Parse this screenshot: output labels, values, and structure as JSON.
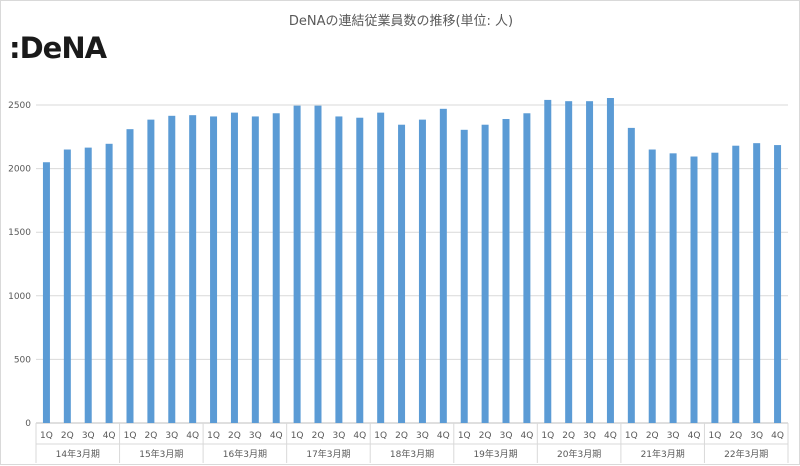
{
  "title": "DeNAの連結従業員数の推移(単位: 人)",
  "logo": ":DeNA",
  "chart_data": {
    "type": "bar",
    "title": "DeNAの連結従業員数の推移(単位: 人)",
    "xlabel": "",
    "ylabel": "",
    "ylim": [
      0,
      2500
    ],
    "yticks": [
      0,
      500,
      1000,
      1500,
      2000,
      2500
    ],
    "grid": true,
    "bar_color": "#5b9bd5",
    "groups": [
      "14年3月期",
      "15年3月期",
      "16年3月期",
      "17年3月期",
      "18年3月期",
      "19年3月期",
      "20年3月期",
      "21年3月期",
      "22年3月期"
    ],
    "quarters": [
      "1Q",
      "2Q",
      "3Q",
      "4Q"
    ],
    "values": [
      2050,
      2150,
      2165,
      2195,
      2310,
      2385,
      2415,
      2420,
      2410,
      2440,
      2410,
      2435,
      2495,
      2495,
      2410,
      2400,
      2440,
      2345,
      2385,
      2470,
      2305,
      2345,
      2390,
      2435,
      2540,
      2530,
      2530,
      2555,
      2320,
      2150,
      2120,
      2095,
      2125,
      2180,
      2200,
      2185
    ]
  }
}
